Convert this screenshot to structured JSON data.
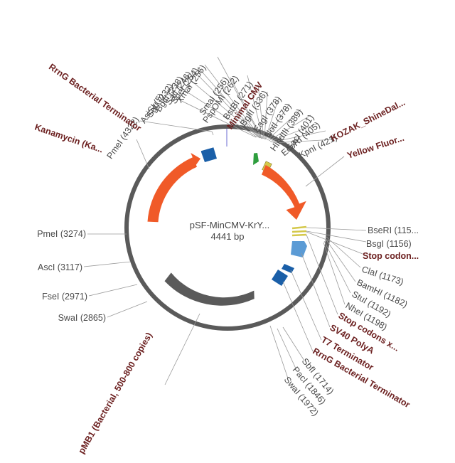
{
  "plasmid": {
    "name": "pSF-MinCMV-KrY...",
    "size": "4441 bp"
  },
  "colors": {
    "backbone": "#5a5a5a",
    "cds": "#f05a28",
    "promoter": "#2e9e3e",
    "terminator": "#1a5fa8",
    "polya": "#5b9bd5",
    "origin": "#5a5a5a",
    "small_feature": "#d4c84a",
    "feature_label": "#6b1f1f",
    "site_label": "#4a4a4a"
  },
  "top_sites": [
    "PmeI (4322)",
    "AsiSI (5)",
    "SgfI (232)",
    "BglII (238)",
    "SalI (246)",
    "SpeI (254)",
    "XmaI (256)",
    "SmaI (256)",
    "PspOMI (262)",
    "BstBI (271)",
    "BglII (336)",
    "EagI (378)",
    "NotI (378)",
    "HindIII (389)",
    "SacI (401)",
    "EcoRI (405)",
    "KpnI (421)"
  ],
  "top_features": {
    "rrng_top": "RrnG Bacterial Terminator",
    "minimal_cmv": "Minimal CMV",
    "kozak": "KOZAK_ShineDal...",
    "yellow": "Yellow Fluor...",
    "kanamycin": "Kanamycin (Ka..."
  },
  "right_items": [
    {
      "text": "BseRI (115...",
      "feature": false
    },
    {
      "text": "BsgI (1156)",
      "feature": false
    },
    {
      "text": "Stop codon...",
      "feature": true
    },
    {
      "text": "ClaI (1173)",
      "feature": false
    },
    {
      "text": "BamHI (1182)",
      "feature": false
    },
    {
      "text": "StuI (1192)",
      "feature": false
    },
    {
      "text": "NheI (1198)",
      "feature": false
    },
    {
      "text": "Stop codons x...",
      "feature": true
    },
    {
      "text": "SV40 PolyA",
      "feature": true
    },
    {
      "text": "T7 Terminator",
      "feature": true
    },
    {
      "text": "RrnG Bacterial Terminator",
      "feature": true
    }
  ],
  "bottom_sites": [
    "SbfI (1714)",
    "PacI (1846)",
    "SwaI (1972)"
  ],
  "left_sites": [
    "PmeI (3274)",
    "AscI (3117)",
    "FseI (2971)",
    "SwaI (2865)"
  ],
  "origin_label": "pMB1 (Bacterial, 500-800 copies)"
}
